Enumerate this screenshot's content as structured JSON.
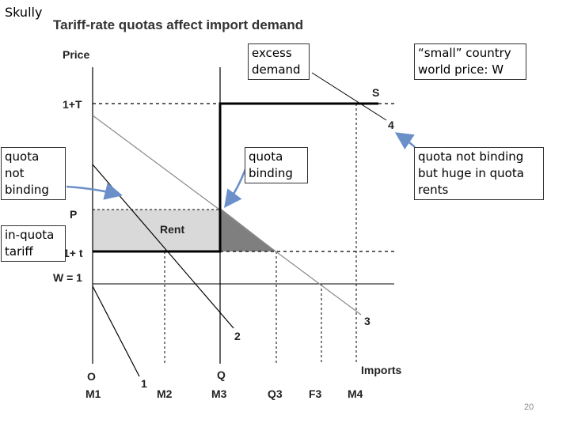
{
  "author": "Skully",
  "title": "Tariff-rate quotas affect import demand",
  "axes": {
    "y_title": "Price",
    "x_title": "Imports"
  },
  "price_levels": {
    "high_tariff": "1+T",
    "quota_price": "P",
    "low_tariff": "1+ t",
    "world": "W = 1"
  },
  "quantity_markers": {
    "origin": "O",
    "m1": "M1",
    "m2": "M2",
    "q_top": "Q",
    "m3": "M3",
    "q3": "Q3",
    "f3": "F3",
    "m4": "M4"
  },
  "curve_labels": {
    "d1": "1",
    "d2": "2",
    "d3": "3",
    "d4": "4",
    "supply": "S"
  },
  "area_labels": {
    "rent": "Rent"
  },
  "callouts": {
    "excess_demand": [
      "excess",
      "demand"
    ],
    "small_country": [
      "“small” country",
      "world price: W"
    ],
    "quota_not_binding": [
      "quota",
      "not",
      "binding"
    ],
    "quota_binding": [
      "quota",
      "binding"
    ],
    "quota_not_binding_rents": [
      "quota not binding",
      "but huge in quota",
      "rents"
    ],
    "in_quota_tariff": [
      "in-quota",
      "tariff"
    ]
  },
  "page_number": "20",
  "colors": {
    "arrow": "#6b8fc8",
    "rent_fill": "#d9d9d9",
    "excess_fill": "#7f7f7f",
    "lines": "#000000",
    "demand_3": "#888888"
  }
}
